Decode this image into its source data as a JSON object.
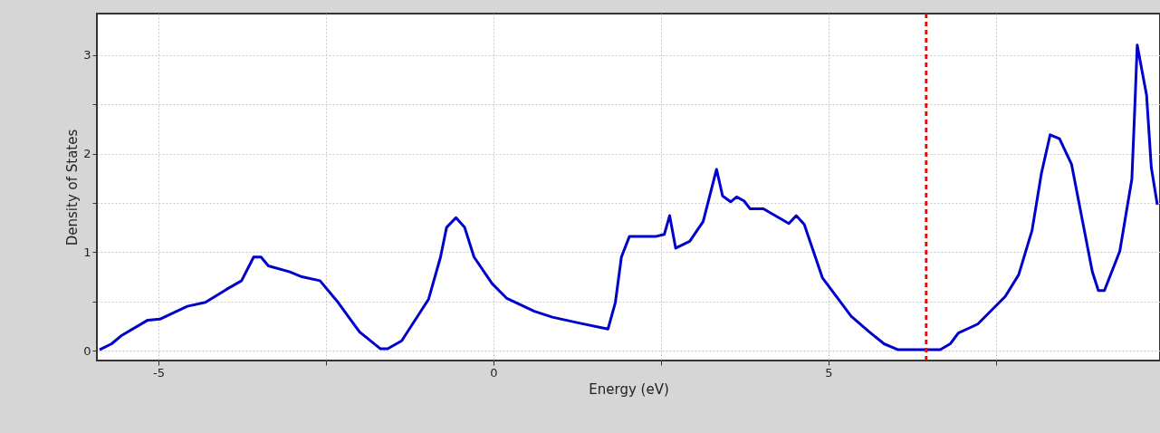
{
  "chart_data": {
    "type": "line",
    "xlabel": "Energy (eV)",
    "ylabel": "Density of States",
    "xlim": [
      -5.92,
      9.95
    ],
    "ylim": [
      -0.1,
      3.42
    ],
    "xticks": [
      -5,
      {
        "value": -2.5,
        "label": null
      },
      0,
      {
        "value": 2.5,
        "label": null
      },
      5,
      {
        "value": 7.5,
        "label": null
      }
    ],
    "yticks": [
      0,
      {
        "value": 0.5,
        "label": null
      },
      1,
      {
        "value": 1.5,
        "label": null
      },
      2,
      {
        "value": 2.5,
        "label": null
      },
      3
    ],
    "grid": true,
    "marker": "none",
    "line_style": "solid",
    "ref_lines": [
      {
        "axis": "x",
        "value": 6.46,
        "color": "#ff0000",
        "line_style": "dashed"
      }
    ],
    "series": [
      {
        "color": "#0000cc",
        "x": [
          -5.88,
          -5.7,
          -5.56,
          -5.16,
          -4.98,
          -4.57,
          -4.3,
          -3.99,
          -3.76,
          -3.58,
          -3.47,
          -3.36,
          -3.04,
          -2.86,
          -2.59,
          -2.32,
          -2.0,
          -1.69,
          -1.58,
          -1.37,
          -0.97,
          -0.79,
          -0.7,
          -0.56,
          -0.43,
          -0.29,
          -0.02,
          0.2,
          0.61,
          0.88,
          1.28,
          1.71,
          1.82,
          1.91,
          2.03,
          2.43,
          2.55,
          2.63,
          2.72,
          2.93,
          3.13,
          3.33,
          3.42,
          3.54,
          3.63,
          3.74,
          3.83,
          4.03,
          4.41,
          4.52,
          4.64,
          4.91,
          5.34,
          5.61,
          5.83,
          6.04,
          6.67,
          6.82,
          6.94,
          7.23,
          7.64,
          7.84,
          8.04,
          8.18,
          8.31,
          8.45,
          8.63,
          8.94,
          9.03,
          9.12,
          9.35,
          9.53,
          9.57,
          9.61,
          9.75,
          9.82,
          9.91
        ],
        "values": [
          0.01,
          0.07,
          0.15,
          0.31,
          0.32,
          0.45,
          0.49,
          0.62,
          0.71,
          0.95,
          0.95,
          0.86,
          0.8,
          0.75,
          0.71,
          0.49,
          0.19,
          0.02,
          0.02,
          0.1,
          0.52,
          0.95,
          1.25,
          1.35,
          1.25,
          0.95,
          0.68,
          0.53,
          0.4,
          0.34,
          0.28,
          0.22,
          0.49,
          0.95,
          1.16,
          1.16,
          1.18,
          1.37,
          1.04,
          1.11,
          1.31,
          1.84,
          1.57,
          1.51,
          1.56,
          1.52,
          1.44,
          1.44,
          1.29,
          1.37,
          1.28,
          0.74,
          0.35,
          0.19,
          0.07,
          0.01,
          0.01,
          0.07,
          0.18,
          0.27,
          0.55,
          0.77,
          1.22,
          1.8,
          2.19,
          2.15,
          1.89,
          0.8,
          0.61,
          0.61,
          1.01,
          1.74,
          2.4,
          3.1,
          2.59,
          1.86,
          1.48
        ]
      }
    ]
  }
}
